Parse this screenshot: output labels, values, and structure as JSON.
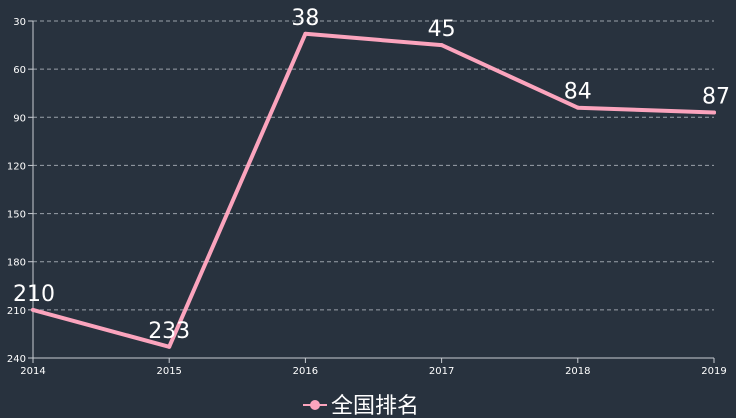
{
  "chart_data": {
    "type": "line",
    "x": [
      "2014",
      "2015",
      "2016",
      "2017",
      "2018",
      "2019"
    ],
    "series": [
      {
        "name": "全国排名",
        "values": [
          210,
          233,
          38,
          45,
          84,
          87
        ]
      }
    ],
    "y_axis": {
      "inverted": true,
      "ylim": [
        30,
        240
      ],
      "ticks": [
        "30",
        "60",
        "90",
        "120",
        "150",
        "180",
        "210",
        "240"
      ]
    },
    "grid": "horizontal-dashed",
    "legend_position": "bottom-center",
    "colors": {
      "background": "#28323e",
      "line": "#fba4bd",
      "axis": "#c8ccd2",
      "grid": "#9aa1aa",
      "text": "#ffffff"
    }
  }
}
